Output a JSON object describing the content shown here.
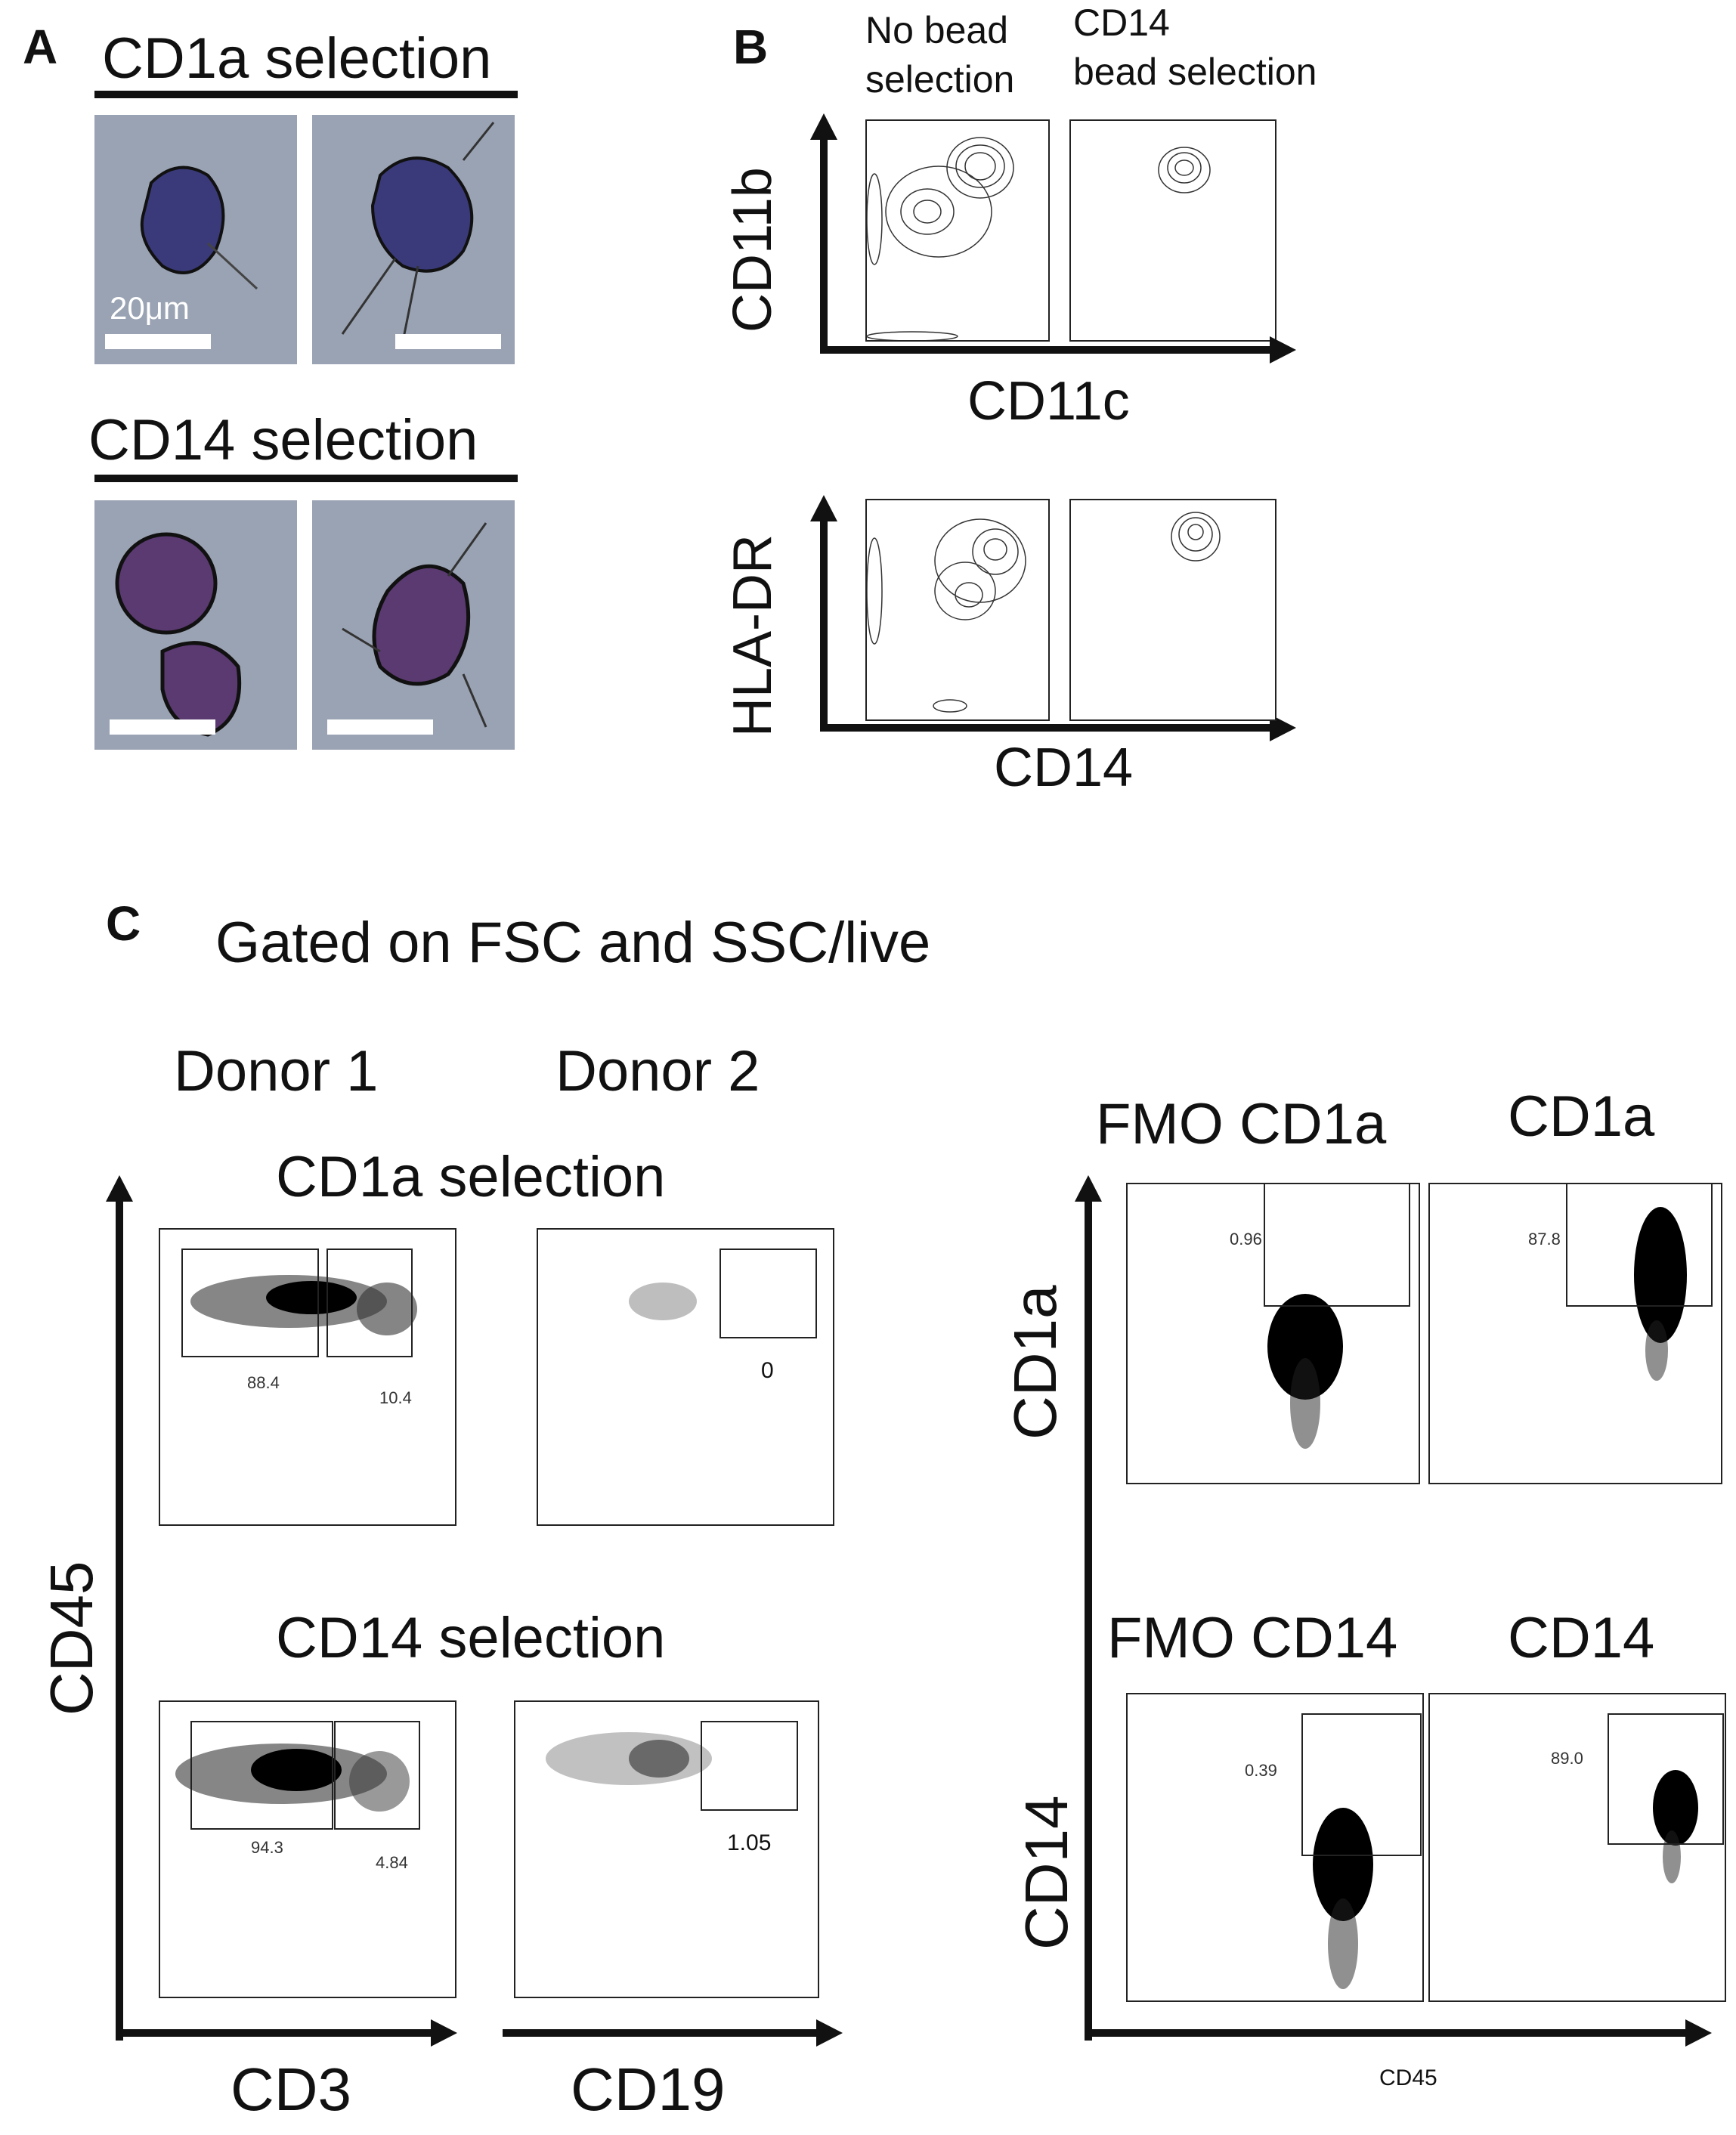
{
  "panelA": {
    "letter": "A",
    "top_title": "CD1a selection",
    "scale_label": "20μm",
    "bottom_title": "CD14 selection"
  },
  "panelB": {
    "letter": "B",
    "col1": "No bead\nselection",
    "col1_line1": "No bead",
    "col1_line2": "selection",
    "col2_line1": "CD14",
    "col2_line2": "bead selection",
    "row1_y": "CD11b",
    "row1_x": "CD11c",
    "row2_y": "HLA-DR",
    "row2_x": "CD14"
  },
  "panelC": {
    "letter": "C",
    "gating": "Gated on FSC and SSC/live",
    "donor1": "Donor 1",
    "donor2": "Donor 2",
    "sel1": "CD1a selection",
    "sel2": "CD14 selection",
    "y_left": "CD45",
    "x_left1": "CD3",
    "x_left2": "CD19",
    "pct_cd1a_d1_a": "88.4",
    "pct_cd1a_d1_b": "10.4",
    "pct_cd1a_d2": "0",
    "pct_cd14_d1_a": "94.3",
    "pct_cd14_d1_b": "4.84",
    "pct_cd14_d2": "1.05",
    "fmo_cd1a": "FMO CD1a",
    "cd1a": "CD1a",
    "fmo_cd14": "FMO CD14",
    "cd14": "CD14",
    "y_right1": "CD1a",
    "y_right2": "CD14",
    "x_right": "CD45",
    "pct_fmo_cd1a": "0.96",
    "pct_cd1a": "87.8",
    "pct_fmo_cd14": "0.39",
    "pct_cd14": "89.0"
  },
  "colors": {
    "micrograph_bg": "#9aa3b3",
    "cell_cd1a": "#3a3a7a",
    "cell_cd14": "#5a3a70",
    "ink": "#111111"
  }
}
